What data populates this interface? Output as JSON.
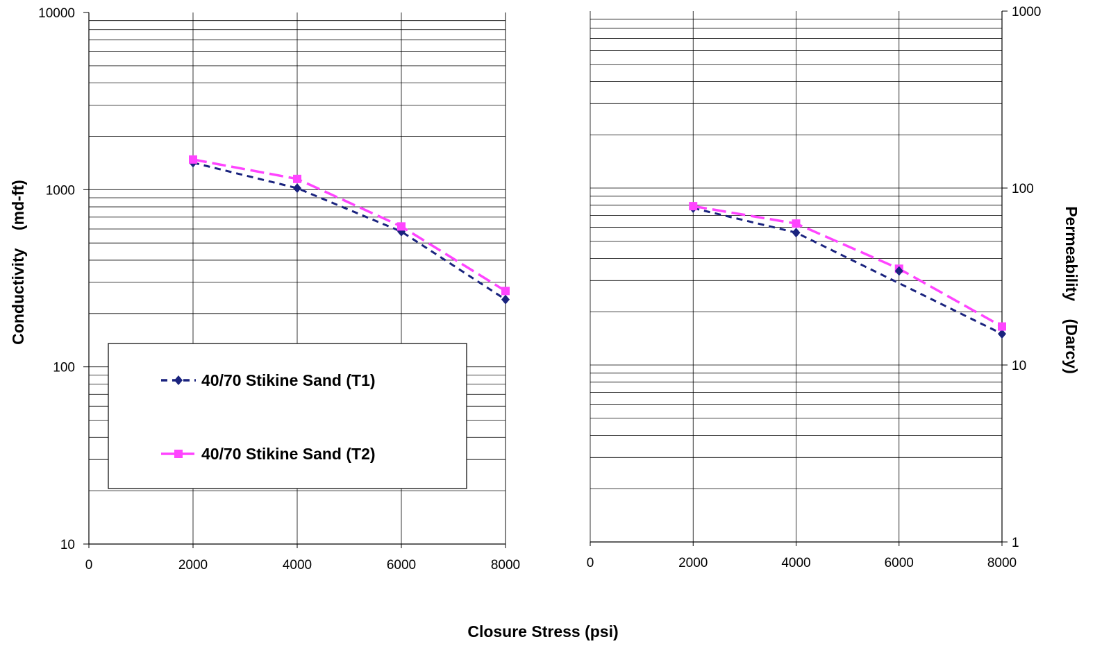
{
  "figure": {
    "xlabel": "Closure Stress (psi)"
  },
  "chart_data": [
    {
      "type": "line",
      "panel": "left",
      "ylabel": "Conductivity    (md-ft)",
      "y_scale": "log",
      "xlim": [
        0,
        8000
      ],
      "ylim": [
        10,
        10000
      ],
      "x_ticks": [
        "0",
        "2000",
        "4000",
        "6000",
        "8000"
      ],
      "y_ticks": [
        "10",
        "100",
        "1000",
        "10000"
      ],
      "grid": true,
      "series": [
        {
          "name": "40/70 Stikine Sand (T1)",
          "color": "#1a237e",
          "marker": "diamond",
          "x": [
            2000,
            4000,
            6000,
            8000
          ],
          "y": [
            1420,
            1020,
            580,
            240
          ]
        },
        {
          "name": "40/70 Stikine Sand (T2)",
          "color": "#ff44ff",
          "marker": "square",
          "x": [
            2000,
            4000,
            6000,
            8000
          ],
          "y": [
            1480,
            1150,
            620,
            268
          ]
        }
      ],
      "legend": "inside-lower-left"
    },
    {
      "type": "line",
      "panel": "right",
      "ylabel": "Permeability    (Darcy)",
      "y_scale": "log",
      "y_axis_side": "right",
      "xlim": [
        0,
        8000
      ],
      "ylim": [
        1,
        1000
      ],
      "x_ticks": [
        "0",
        "2000",
        "4000",
        "6000",
        "8000"
      ],
      "y_ticks": [
        "1",
        "10",
        "100",
        "1000"
      ],
      "grid": true,
      "series": [
        {
          "name": "40/70 Stikine Sand (T1)",
          "color": "#1a237e",
          "marker": "diamond",
          "x": [
            2000,
            4000,
            8000
          ],
          "y": [
            77,
            56,
            15
          ]
        },
        {
          "name": "40/70 Stikine Sand (T2)",
          "color": "#ff44ff",
          "marker": "square",
          "x": [
            2000,
            4000,
            6000,
            8000
          ],
          "y": [
            79,
            63,
            35,
            16.5
          ]
        }
      ],
      "extra_points": [
        {
          "series": 0,
          "x": 6000,
          "y": 34
        }
      ]
    }
  ]
}
